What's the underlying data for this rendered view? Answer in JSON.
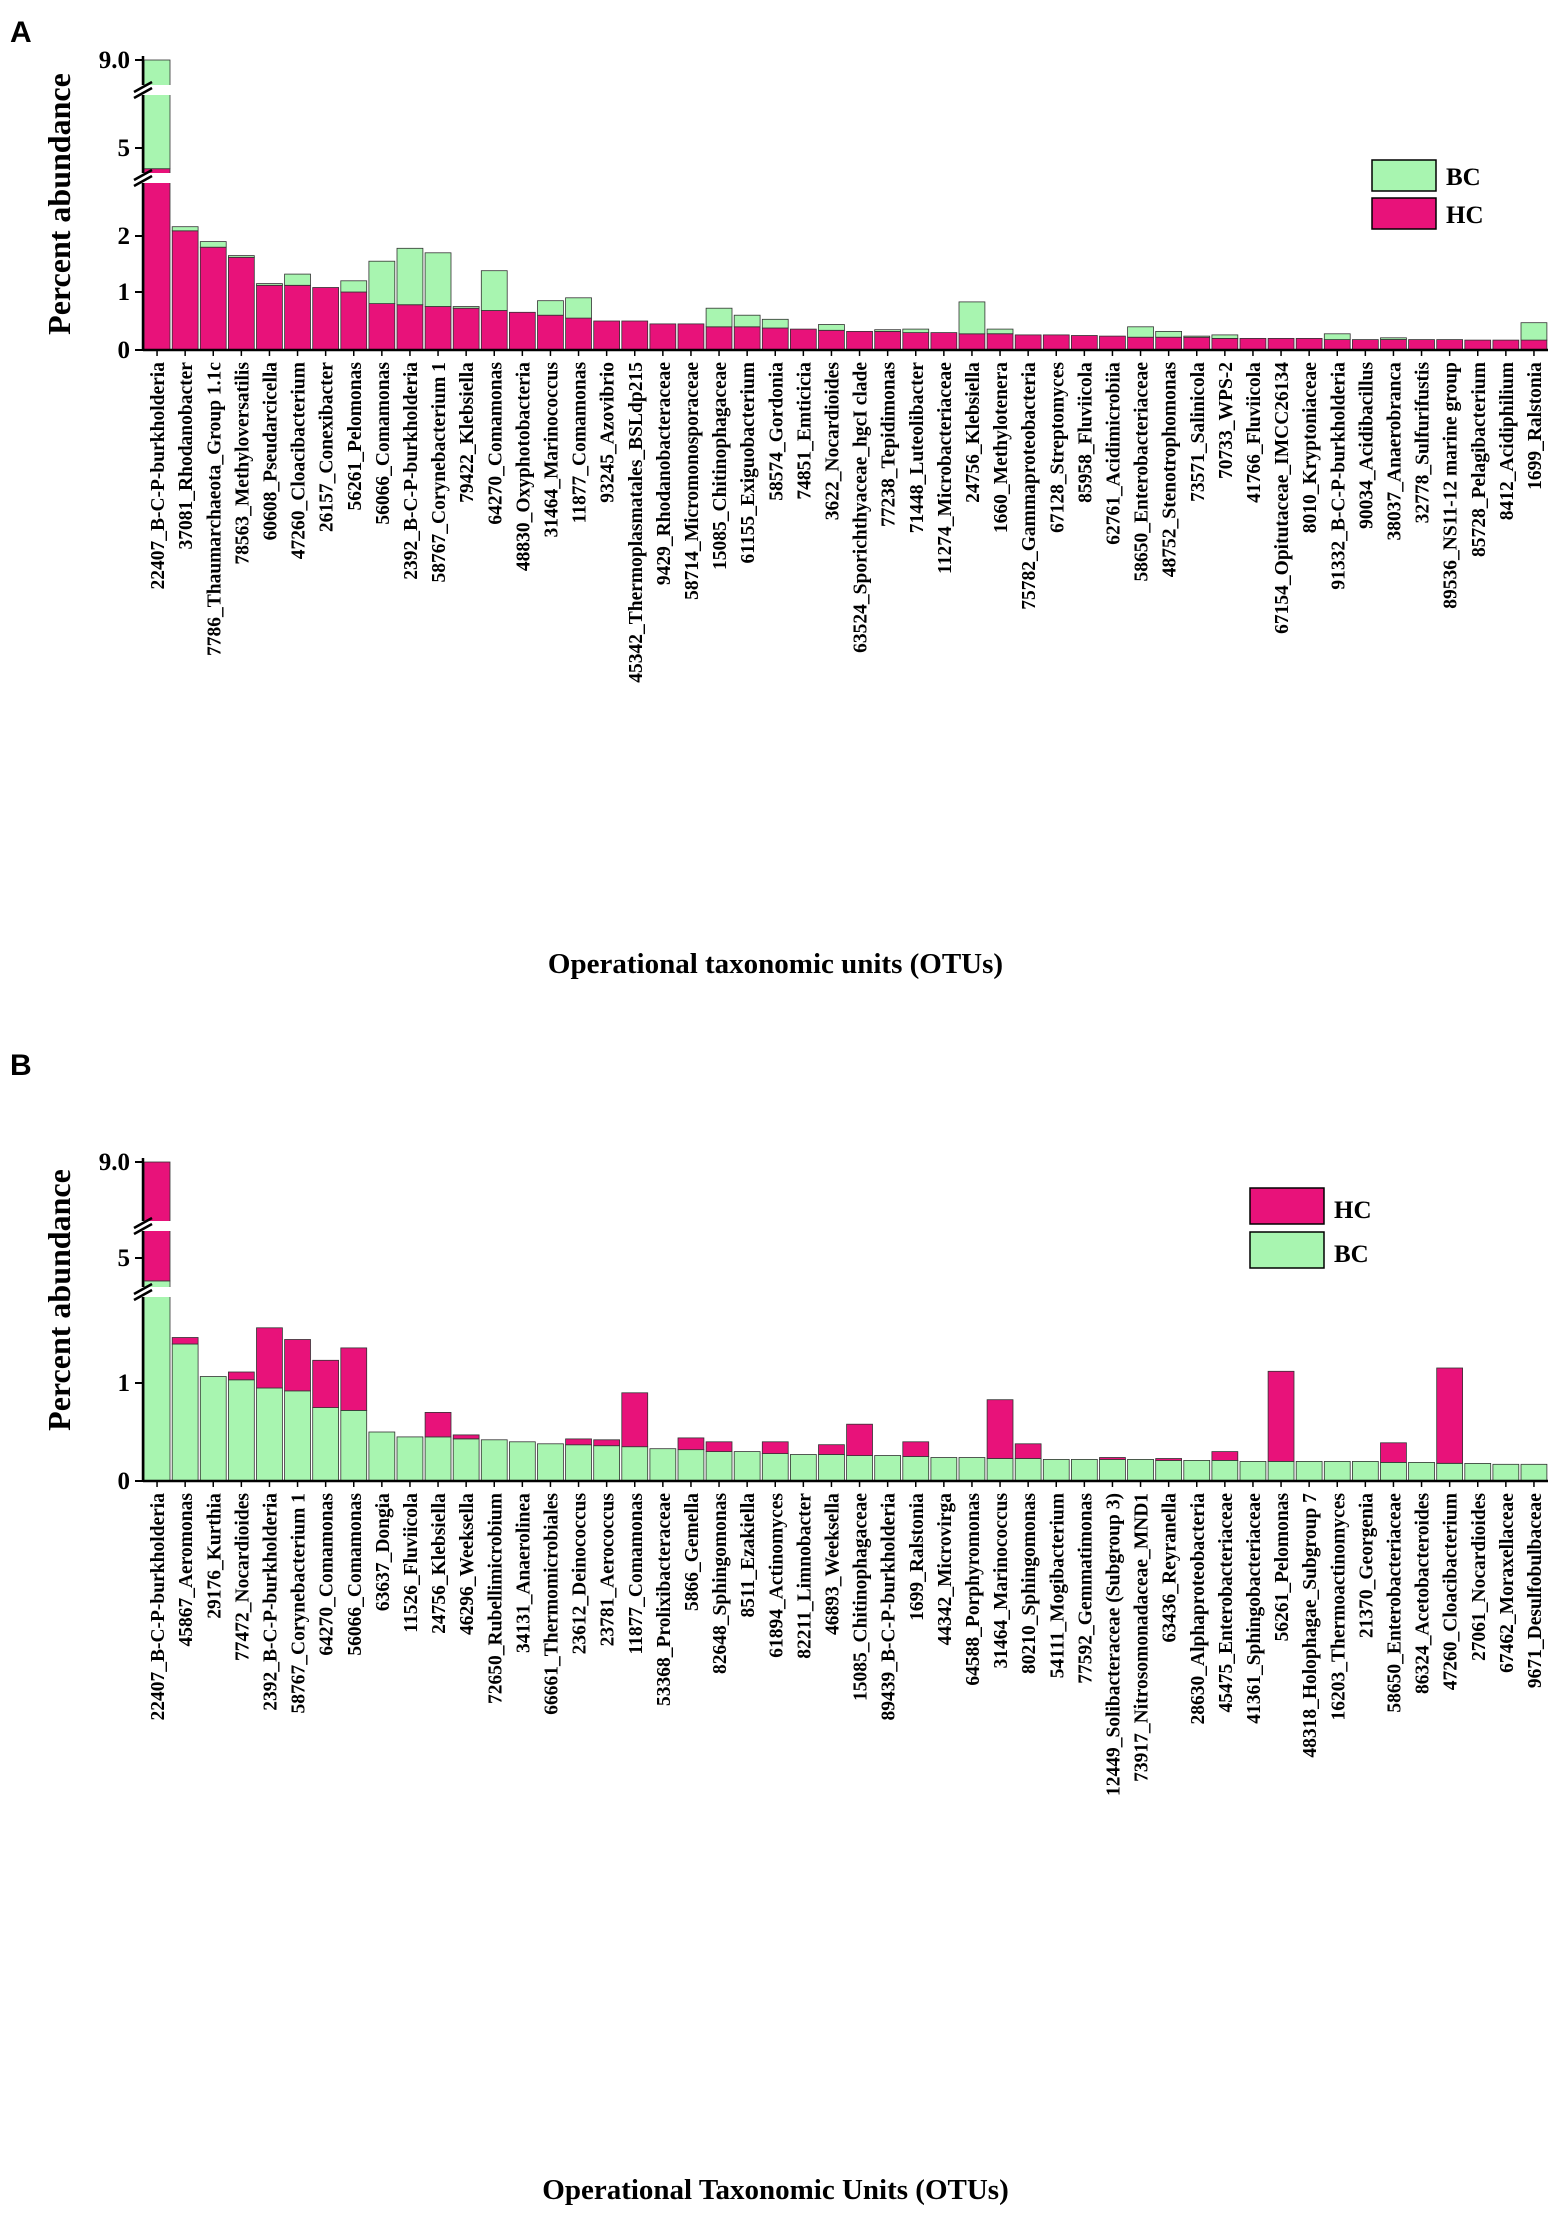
{
  "colors": {
    "BC": "#a8f5b0",
    "HC": "#e8127a",
    "axis": "#000000"
  },
  "chart_data": [
    {
      "panel": "A",
      "type": "bar",
      "stacked": true,
      "ylabel": "Percent abundance",
      "xlabel": "Operational taxonomic units (OTUs)",
      "yticks": [
        "0",
        "1",
        "2",
        "5",
        "9.0"
      ],
      "axis_break": "broken y-axis (~2.5–4.5 and ~5.5–8.5)",
      "legend": [
        {
          "key": "BC",
          "label": "BC"
        },
        {
          "key": "HC",
          "label": "HC"
        }
      ],
      "stack_order": [
        "HC",
        "BC"
      ],
      "categories": [
        "22407_B-C-P-burkholderia",
        "37081_Rhodanobacter",
        "7786_Thaumarchaeota_Group 1.1c",
        "78563_Methyloversatilis",
        "60608_Pseudarcicella",
        "47260_Cloacibacterium",
        "26157_Conexibacter",
        "56261_Pelomonas",
        "56066_Comamonas",
        "2392_B-C-P-burkholderia",
        "58767_Corynebacterium 1",
        "79422_Klebsiella",
        "64270_Comamonas",
        "48830_Oxyphotobacteria",
        "31464_Marinococcus",
        "11877_Comamonas",
        "93245_Azovibrio",
        "45342_Thermoplasmatales_BSLdp215",
        "9429_Rhodanobacteraceae",
        "58714_Micromonosporaceae",
        "15085_Chitinophagaceae",
        "61155_Exiguobacterium",
        "58574_Gordonia",
        "74851_Emticicia",
        "3622_Nocardioides",
        "63524_Sporichthyaceae_hgcI clade",
        "77238_Tepidimonas",
        "71448_Luteolibacter",
        "11274_Microbacteriaceae",
        "24756_Klebsiella",
        "1660_Methylotenera",
        "75782_Gammaproteobacteria",
        "67128_Streptomyces",
        "85958_Fluviicola",
        "62761_Acidimicrobiia",
        "58650_Enterobacteriaceae",
        "48752_Stenotrophomonas",
        "73571_Salinicola",
        "70733_WPS-2",
        "41766_Fluviicola",
        "67154_Opitutaceae_IMCC26134",
        "8010_Kryptoniaceae",
        "91332_B-C-P-burkholderia",
        "90034_Acidibacillus",
        "38037_Anaerobranca",
        "32778_Sulfurifustis",
        "89536_NS11-12 marine group",
        "85728_Pelagibacterium",
        "8412_Acidiphilium",
        "1699_Ralstonia"
      ],
      "series": [
        {
          "name": "HC",
          "values": [
            4.5,
            2.1,
            1.8,
            1.62,
            1.12,
            1.12,
            1.08,
            1.0,
            0.8,
            0.78,
            0.75,
            0.72,
            0.68,
            0.65,
            0.6,
            0.55,
            0.5,
            0.5,
            0.45,
            0.45,
            0.4,
            0.4,
            0.38,
            0.36,
            0.34,
            0.32,
            0.32,
            0.3,
            0.3,
            0.28,
            0.28,
            0.26,
            0.26,
            0.25,
            0.24,
            0.22,
            0.22,
            0.22,
            0.2,
            0.2,
            0.2,
            0.2,
            0.18,
            0.18,
            0.18,
            0.18,
            0.18,
            0.17,
            0.17,
            0.17
          ]
        },
        {
          "name": "BC",
          "values": [
            4.5,
            0.08,
            0.1,
            0.03,
            0.03,
            0.2,
            0.0,
            0.2,
            0.75,
            1.0,
            0.95,
            0.03,
            0.7,
            0.0,
            0.25,
            0.35,
            0.0,
            0.0,
            0.0,
            0.0,
            0.32,
            0.2,
            0.15,
            0.0,
            0.1,
            0.0,
            0.03,
            0.06,
            0.0,
            0.55,
            0.08,
            0.0,
            0.0,
            0.0,
            0.0,
            0.18,
            0.1,
            0.02,
            0.06,
            0.0,
            0.0,
            0.0,
            0.1,
            0.0,
            0.03,
            0.0,
            0.0,
            0.0,
            0.0,
            0.3
          ]
        }
      ]
    },
    {
      "panel": "B",
      "type": "bar",
      "stacked": true,
      "ylabel": "Percent abundance",
      "xlabel": "Operational Taxonomic Units (OTUs)",
      "yticks": [
        "0",
        "1",
        "5",
        "9.0"
      ],
      "axis_break": "broken y-axis (~2.2–4.5 and ~5.5–8.5)",
      "legend": [
        {
          "key": "HC",
          "label": "HC"
        },
        {
          "key": "BC",
          "label": "BC"
        }
      ],
      "stack_order": [
        "BC",
        "HC"
      ],
      "categories": [
        "22407_B-C-P-burkholderia",
        "45867_Aeromonas",
        "29176_Kurthia",
        "77472_Nocardioides",
        "2392_B-C-P-burkholderia",
        "58767_Corynebacterium 1",
        "64270_Comamonas",
        "56066_Comamonas",
        "63637_Dongia",
        "11526_Fluviicola",
        "24756_Klebsiella",
        "46296_Weeksella",
        "72650_Rubellimicrobium",
        "34131_Anaerolinea",
        "66661_Thermomicrobiales",
        "23612_Deinococcus",
        "23781_Aerococcus",
        "11877_Comamonas",
        "53368_Prolixibacteraceae",
        "5866_Gemella",
        "82648_Sphingomonas",
        "8511_Ezakiella",
        "61894_Actinomyces",
        "82211_Limnobacter",
        "46893_Weeksella",
        "15085_Chitinophagaceae",
        "89439_B-C-P-burkholderia",
        "1699_Ralstonia",
        "44342_Microvirga",
        "64588_Porphyromonas",
        "31464_Marinococcus",
        "80210_Sphingomonas",
        "54111_Mogibacterium",
        "77592_Gemmatimonas",
        "12449_Solibacteraceae (Subgroup 3)",
        "73917_Nitrosomonadaceae_MND1",
        "63436_Reyranella",
        "28630_Alphaproteobacteria",
        "45475_Enterobacteriaceae",
        "41361_Sphingobacteriaceae",
        "56261_Pelomonas",
        "48318_Holophagae_Subgroup 7",
        "16203_Thermoactinomyces",
        "21370_Georgenia",
        "58650_Enterobacteriaceae",
        "86324_Acetobacteroides",
        "47260_Cloacibacterium",
        "27061_Nocardioides",
        "67462_Moraxellaceae",
        "9671_Desulfobulbaceae"
      ],
      "series": [
        {
          "name": "BC",
          "values": [
            4.5,
            1.6,
            1.1,
            1.05,
            0.95,
            0.92,
            0.75,
            0.72,
            0.5,
            0.45,
            0.45,
            0.43,
            0.42,
            0.4,
            0.38,
            0.37,
            0.36,
            0.35,
            0.33,
            0.32,
            0.3,
            0.3,
            0.28,
            0.27,
            0.27,
            0.26,
            0.26,
            0.25,
            0.24,
            0.24,
            0.23,
            0.23,
            0.22,
            0.22,
            0.22,
            0.22,
            0.21,
            0.21,
            0.21,
            0.2,
            0.2,
            0.2,
            0.2,
            0.2,
            0.19,
            0.19,
            0.18,
            0.18,
            0.17,
            0.17
          ]
        },
        {
          "name": "HC",
          "values": [
            4.5,
            0.1,
            0.0,
            0.12,
            0.9,
            0.75,
            0.6,
            0.82,
            0.0,
            0.0,
            0.25,
            0.04,
            0.0,
            0.0,
            0.0,
            0.06,
            0.06,
            0.55,
            0.0,
            0.12,
            0.1,
            0.0,
            0.12,
            0.0,
            0.1,
            0.32,
            0.0,
            0.15,
            0.0,
            0.0,
            0.6,
            0.15,
            0.0,
            0.0,
            0.02,
            0.0,
            0.02,
            0.0,
            0.09,
            0.0,
            0.98,
            0.0,
            0.0,
            0.0,
            0.2,
            0.0,
            1.05,
            0.0,
            0.0,
            0.0
          ]
        }
      ]
    }
  ]
}
